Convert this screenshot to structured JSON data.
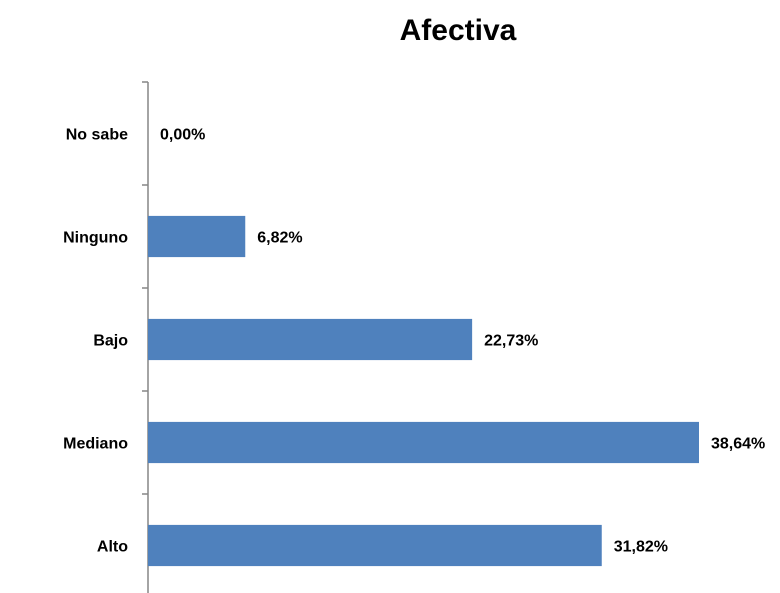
{
  "chart_data": {
    "type": "bar",
    "orientation": "horizontal",
    "title": "Afectiva",
    "categories": [
      "No sabe",
      "Ninguno",
      "Bajo",
      "Mediano",
      "Alto"
    ],
    "values": [
      0.0,
      6.82,
      22.73,
      38.64,
      31.82
    ],
    "value_labels": [
      "0,00%",
      "6,82%",
      "22,73%",
      "38,64%",
      "31,82%"
    ],
    "xlim": [
      0,
      38.64
    ],
    "bar_color": "#4f81bd",
    "grid": false,
    "legend": "none"
  }
}
